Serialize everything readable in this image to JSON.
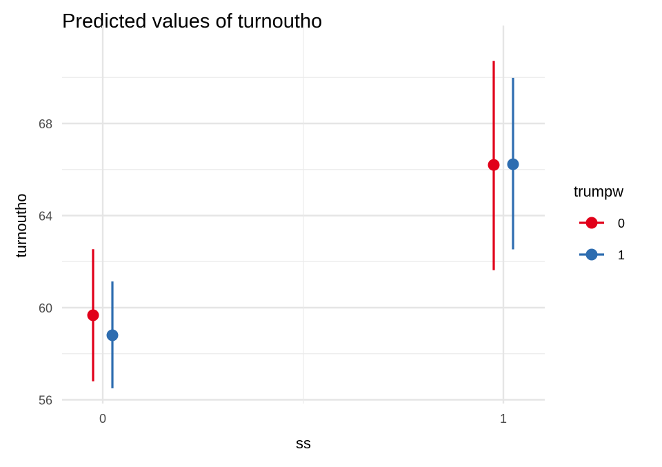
{
  "chart_data": {
    "type": "scatter",
    "subtype": "pointrange",
    "title": "Predicted values of turnoutho",
    "xlabel": "ss",
    "ylabel": "turnoutho",
    "categories": [
      "0",
      "1"
    ],
    "ylim": [
      55.8,
      71.0
    ],
    "y_ticks": [
      56,
      60,
      64,
      68
    ],
    "y_tick_labels": [
      "56",
      "60",
      "64",
      "68"
    ],
    "grid": true,
    "legend": {
      "title": "trumpw",
      "placement": "right"
    },
    "series": [
      {
        "name": "0",
        "color": "#E1001A",
        "values": [
          59.67,
          66.2
        ],
        "lower": [
          56.8,
          61.63
        ],
        "upper": [
          62.54,
          70.72
        ]
      },
      {
        "name": "1",
        "color": "#2E6DB0",
        "values": [
          58.8,
          66.23
        ],
        "lower": [
          56.5,
          62.53
        ],
        "upper": [
          61.14,
          69.98
        ]
      }
    ]
  }
}
